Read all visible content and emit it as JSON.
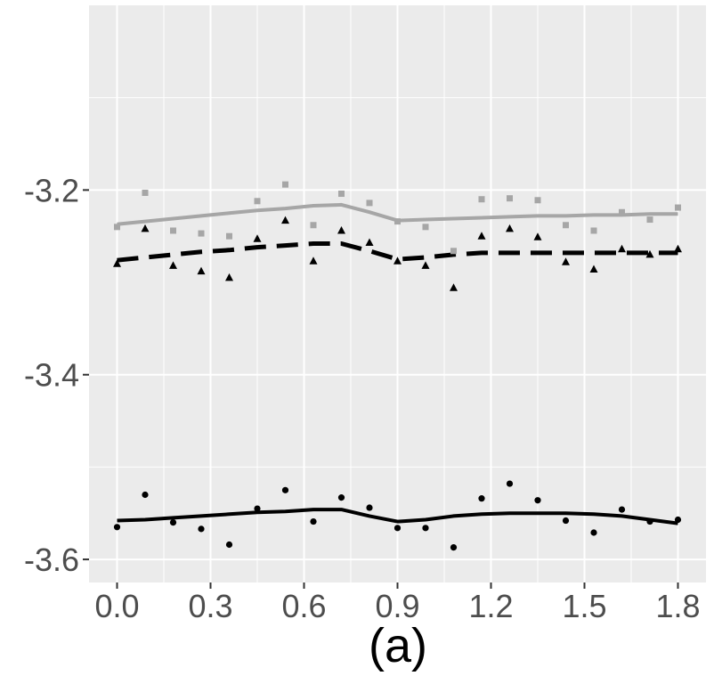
{
  "chart_data": {
    "type": "scatter",
    "title": "",
    "caption": "(a)",
    "xlabel": "",
    "ylabel": "",
    "xlim": [
      -0.09,
      1.89
    ],
    "ylim": [
      -3.625,
      -3.0
    ],
    "x_ticks": [
      0.0,
      0.3,
      0.6,
      0.9,
      1.2,
      1.5,
      1.8
    ],
    "x_tick_labels": [
      "0.0",
      "0.3",
      "0.6",
      "0.9",
      "1.2",
      "1.5",
      "1.8"
    ],
    "y_ticks": [
      -3.2,
      -3.4,
      -3.6
    ],
    "y_tick_labels": [
      "-3.2",
      "-3.4",
      "-3.6"
    ],
    "grid": true,
    "background": "#ebebeb",
    "x": [
      0.0,
      0.09,
      0.18,
      0.27,
      0.36,
      0.45,
      0.54,
      0.63,
      0.72,
      0.81,
      0.9,
      0.99,
      1.08,
      1.17,
      1.26,
      1.35,
      1.44,
      1.53,
      1.62,
      1.71,
      1.8
    ],
    "series": [
      {
        "name": "grey squares",
        "marker": "square",
        "color": "#a6a6a6",
        "line_style": "solid",
        "points": [
          -3.24,
          -3.203,
          -3.244,
          -3.247,
          -3.25,
          -3.212,
          -3.194,
          -3.238,
          -3.204,
          -3.214,
          -3.234,
          -3.24,
          -3.266,
          -3.21,
          -3.209,
          -3.211,
          -3.238,
          -3.244,
          -3.224,
          -3.232,
          -3.219
        ],
        "fit": [
          -3.237,
          -3.234,
          -3.231,
          -3.228,
          -3.225,
          -3.222,
          -3.22,
          -3.217,
          -3.216,
          -3.224,
          -3.233,
          -3.232,
          -3.231,
          -3.23,
          -3.229,
          -3.228,
          -3.228,
          -3.227,
          -3.227,
          -3.226,
          -3.226
        ]
      },
      {
        "name": "black triangles",
        "marker": "triangle",
        "color": "#000000",
        "line_style": "dashed",
        "points": [
          -3.28,
          -3.242,
          -3.282,
          -3.288,
          -3.295,
          -3.253,
          -3.233,
          -3.277,
          -3.244,
          -3.257,
          -3.277,
          -3.282,
          -3.306,
          -3.25,
          -3.242,
          -3.251,
          -3.278,
          -3.286,
          -3.264,
          -3.27,
          -3.264
        ],
        "fit": [
          -3.276,
          -3.273,
          -3.27,
          -3.267,
          -3.265,
          -3.262,
          -3.26,
          -3.258,
          -3.258,
          -3.266,
          -3.275,
          -3.273,
          -3.27,
          -3.268,
          -3.268,
          -3.268,
          -3.268,
          -3.268,
          -3.268,
          -3.268,
          -3.268
        ]
      },
      {
        "name": "black circles",
        "marker": "circle",
        "color": "#000000",
        "line_style": "solid",
        "points": [
          -3.565,
          -3.53,
          -3.56,
          -3.567,
          -3.584,
          -3.545,
          -3.525,
          -3.559,
          -3.533,
          -3.544,
          -3.566,
          -3.566,
          -3.587,
          -3.534,
          -3.518,
          -3.536,
          -3.558,
          -3.571,
          -3.546,
          -3.559,
          -3.557
        ],
        "fit": [
          -3.558,
          -3.557,
          -3.555,
          -3.553,
          -3.551,
          -3.549,
          -3.548,
          -3.546,
          -3.546,
          -3.553,
          -3.559,
          -3.557,
          -3.553,
          -3.551,
          -3.55,
          -3.55,
          -3.55,
          -3.551,
          -3.553,
          -3.557,
          -3.561
        ]
      }
    ]
  }
}
